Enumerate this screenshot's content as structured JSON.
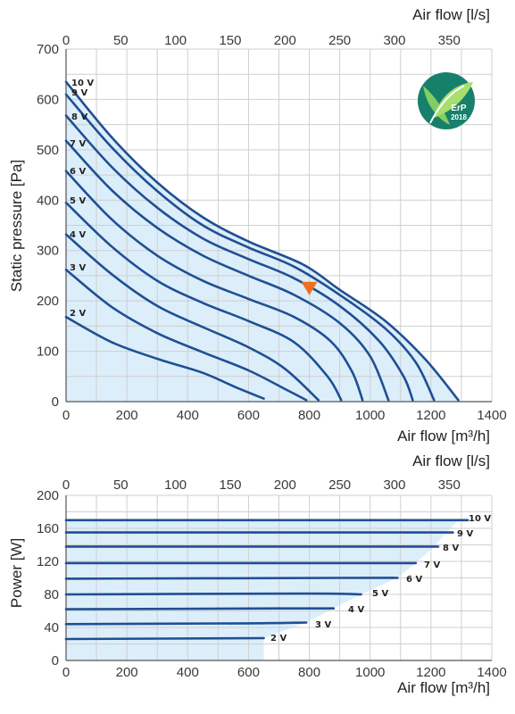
{
  "chart_data": [
    {
      "type": "line",
      "xlabel": "Air flow [m³/h]",
      "x2label": "Air flow [l/s]",
      "ylabel": "Static pressure [Pa]",
      "xlim": [
        0,
        1400
      ],
      "x2lim": [
        0,
        388.9
      ],
      "ylim": [
        0,
        700
      ],
      "x_ticks": [
        "0",
        "200",
        "400",
        "600",
        "800",
        "1000",
        "1200",
        "1400"
      ],
      "x2_ticks": [
        "0",
        "50",
        "100",
        "150",
        "200",
        "250",
        "300",
        "350"
      ],
      "y_ticks": [
        "0",
        "100",
        "200",
        "300",
        "400",
        "500",
        "600",
        "700"
      ],
      "grid": true,
      "fill_under_curves": "#dceefa",
      "line_color": "#1f4f94",
      "series": [
        {
          "name": "2 V",
          "points": [
            [
              0,
              168
            ],
            [
              150,
              118
            ],
            [
              300,
              85
            ],
            [
              450,
              57
            ],
            [
              560,
              28
            ],
            [
              650,
              6
            ]
          ]
        },
        {
          "name": "3 V",
          "points": [
            [
              0,
              262
            ],
            [
              150,
              188
            ],
            [
              300,
              136
            ],
            [
              450,
              98
            ],
            [
              600,
              62
            ],
            [
              720,
              25
            ],
            [
              790,
              3
            ]
          ]
        },
        {
          "name": "4 V",
          "points": [
            [
              0,
              332
            ],
            [
              150,
              253
            ],
            [
              300,
              190
            ],
            [
              450,
              148
            ],
            [
              600,
              108
            ],
            [
              720,
              65
            ],
            [
              830,
              3
            ]
          ]
        },
        {
          "name": "5 V",
          "points": [
            [
              0,
              395
            ],
            [
              150,
              308
            ],
            [
              300,
              240
            ],
            [
              450,
              196
            ],
            [
              600,
              160
            ],
            [
              750,
              118
            ],
            [
              860,
              50
            ],
            [
              905,
              3
            ]
          ]
        },
        {
          "name": "6 V",
          "points": [
            [
              0,
              458
            ],
            [
              150,
              362
            ],
            [
              300,
              290
            ],
            [
              450,
              240
            ],
            [
              600,
              204
            ],
            [
              750,
              168
            ],
            [
              870,
              120
            ],
            [
              940,
              60
            ],
            [
              975,
              3
            ]
          ]
        },
        {
          "name": "7 V",
          "points": [
            [
              0,
              518
            ],
            [
              150,
              420
            ],
            [
              300,
              345
            ],
            [
              450,
              290
            ],
            [
              600,
              250
            ],
            [
              750,
              212
            ],
            [
              900,
              156
            ],
            [
              1000,
              90
            ],
            [
              1060,
              3
            ]
          ]
        },
        {
          "name": "8 V",
          "points": [
            [
              0,
              568
            ],
            [
              150,
              466
            ],
            [
              300,
              385
            ],
            [
              450,
              324
            ],
            [
              600,
              283
            ],
            [
              750,
              245
            ],
            [
              900,
              190
            ],
            [
              1030,
              120
            ],
            [
              1110,
              50
            ],
            [
              1140,
              3
            ]
          ]
        },
        {
          "name": "9 V",
          "points": [
            [
              0,
              610
            ],
            [
              150,
              505
            ],
            [
              300,
              418
            ],
            [
              450,
              350
            ],
            [
              600,
              306
            ],
            [
              750,
              268
            ],
            [
              900,
              212
            ],
            [
              1050,
              145
            ],
            [
              1150,
              78
            ],
            [
              1210,
              3
            ]
          ]
        },
        {
          "name": "10 V",
          "points": [
            [
              0,
              635
            ],
            [
              150,
              525
            ],
            [
              300,
              435
            ],
            [
              450,
              366
            ],
            [
              600,
              318
            ],
            [
              780,
              272
            ],
            [
              900,
              222
            ],
            [
              1050,
              160
            ],
            [
              1180,
              85
            ],
            [
              1290,
              3
            ]
          ]
        }
      ],
      "labels": [
        "10 V",
        "9 V",
        "8 V",
        "7 V",
        "6 V",
        "5 V",
        "4 V",
        "3 V",
        "2 V"
      ],
      "operating_point_marker": {
        "x": 800,
        "y": 222,
        "color": "#f07020"
      },
      "badge": {
        "line1": "ErP",
        "line2": "2018"
      }
    },
    {
      "type": "line",
      "xlabel": "Air flow [m³/h]",
      "x2label": "Air flow [l/s]",
      "ylabel": "Power [W]",
      "xlim": [
        0,
        1400
      ],
      "x2lim": [
        0,
        388.9
      ],
      "ylim": [
        0,
        200
      ],
      "x_ticks": [
        "0",
        "200",
        "400",
        "600",
        "800",
        "1000",
        "1200",
        "1400"
      ],
      "x2_ticks": [
        "0",
        "50",
        "100",
        "150",
        "200",
        "250",
        "300",
        "350"
      ],
      "y_ticks": [
        "0",
        "40",
        "80",
        "120",
        "160",
        "200"
      ],
      "grid": true,
      "fill_under_curves": "#dceefa",
      "line_color": "#1f4f94",
      "series": [
        {
          "name": "2 V",
          "points": [
            [
              0,
              26
            ],
            [
              650,
              27
            ]
          ]
        },
        {
          "name": "3 V",
          "points": [
            [
              0,
              44
            ],
            [
              600,
              45
            ],
            [
              790,
              46
            ]
          ]
        },
        {
          "name": "4 V",
          "points": [
            [
              0,
              62
            ],
            [
              700,
              63
            ],
            [
              880,
              63
            ]
          ]
        },
        {
          "name": "5 V",
          "points": [
            [
              0,
              80
            ],
            [
              800,
              81
            ],
            [
              970,
              80
            ]
          ]
        },
        {
          "name": "6 V",
          "points": [
            [
              0,
              99
            ],
            [
              900,
              100
            ],
            [
              1090,
              100
            ]
          ]
        },
        {
          "name": "7 V",
          "points": [
            [
              0,
              118
            ],
            [
              1000,
              118
            ],
            [
              1150,
              118
            ]
          ]
        },
        {
          "name": "8 V",
          "points": [
            [
              0,
              138
            ],
            [
              1100,
              138
            ],
            [
              1210,
              138
            ]
          ]
        },
        {
          "name": "9 V",
          "points": [
            [
              0,
              155
            ],
            [
              1150,
              155
            ],
            [
              1250,
              155
            ]
          ]
        },
        {
          "name": "10 V",
          "points": [
            [
              0,
              170
            ],
            [
              1200,
              170
            ],
            [
              1290,
              170
            ]
          ]
        }
      ],
      "labels": [
        "10 V",
        "9 V",
        "8 V",
        "7 V",
        "6 V",
        "5 V",
        "4 V",
        "3 V",
        "2 V"
      ]
    }
  ]
}
